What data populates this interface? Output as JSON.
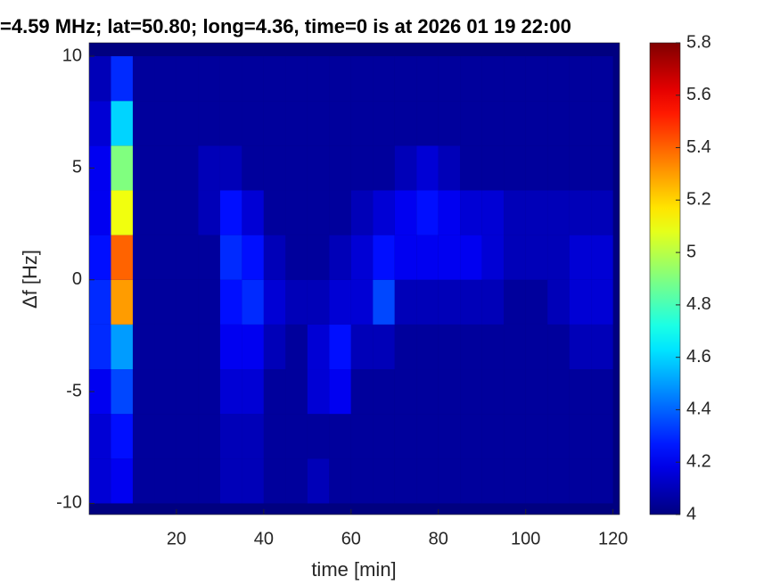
{
  "chart_data": {
    "type": "heatmap",
    "title": "=4.59 MHz;  lat=50.80; long=4.36, time=0 is at 2026 01 19 22:00",
    "xlabel": "time [min]",
    "ylabel": "Δf [Hz]",
    "xlim": [
      0,
      121.5
    ],
    "xticks": [
      20,
      40,
      60,
      80,
      100,
      120
    ],
    "ylim": [
      -10.5,
      10.6
    ],
    "yticks": [
      -10,
      -5,
      0,
      5,
      10
    ],
    "colormap": "jet",
    "clim": [
      4,
      5.8
    ],
    "cticks": [
      4,
      4.2,
      4.4,
      4.6,
      4.8,
      5,
      5.2,
      5.4,
      5.6,
      5.8
    ],
    "xbins": [
      0,
      5,
      10,
      15,
      20,
      25,
      30,
      35,
      40,
      45,
      50,
      55,
      60,
      65,
      70,
      75,
      80,
      85,
      90,
      95,
      100,
      105,
      110,
      115,
      120
    ],
    "ybins": [
      -10,
      -8,
      -6,
      -4,
      -2,
      0,
      2,
      4,
      6,
      8,
      10
    ],
    "z": [
      [
        4.15,
        4.2,
        4.05,
        4.05,
        4.05,
        4.05,
        4.1,
        4.1,
        4.05,
        4.05,
        4.1,
        4.05,
        4.05,
        4.05,
        4.05,
        4.05,
        4.05,
        4.05,
        4.05,
        4.05,
        4.05,
        4.05,
        4.05,
        4.05
      ],
      [
        4.15,
        4.25,
        4.05,
        4.05,
        4.05,
        4.05,
        4.1,
        4.1,
        4.05,
        4.05,
        4.05,
        4.05,
        4.05,
        4.05,
        4.05,
        4.05,
        4.05,
        4.05,
        4.05,
        4.05,
        4.05,
        4.05,
        4.05,
        4.05
      ],
      [
        4.2,
        4.35,
        4.05,
        4.05,
        4.05,
        4.05,
        4.15,
        4.15,
        4.05,
        4.05,
        4.15,
        4.2,
        4.05,
        4.05,
        4.05,
        4.05,
        4.05,
        4.05,
        4.05,
        4.05,
        4.05,
        4.05,
        4.05,
        4.05
      ],
      [
        4.3,
        4.5,
        4.05,
        4.05,
        4.05,
        4.05,
        4.2,
        4.2,
        4.1,
        4.05,
        4.15,
        4.25,
        4.1,
        4.1,
        4.05,
        4.05,
        4.05,
        4.05,
        4.05,
        4.05,
        4.05,
        4.05,
        4.1,
        4.1
      ],
      [
        4.3,
        5.3,
        4.05,
        4.05,
        4.05,
        4.05,
        4.25,
        4.3,
        4.15,
        4.1,
        4.1,
        4.15,
        4.15,
        4.35,
        4.1,
        4.1,
        4.1,
        4.1,
        4.1,
        4.05,
        4.05,
        4.1,
        4.15,
        4.15
      ],
      [
        4.25,
        5.4,
        4.05,
        4.05,
        4.05,
        4.05,
        4.3,
        4.25,
        4.1,
        4.05,
        4.05,
        4.1,
        4.15,
        4.25,
        4.2,
        4.2,
        4.2,
        4.2,
        4.15,
        4.1,
        4.1,
        4.1,
        4.15,
        4.15
      ],
      [
        4.2,
        5.1,
        4.05,
        4.05,
        4.05,
        4.1,
        4.25,
        4.15,
        4.05,
        4.05,
        4.05,
        4.05,
        4.1,
        4.15,
        4.2,
        4.25,
        4.2,
        4.15,
        4.15,
        4.1,
        4.1,
        4.1,
        4.1,
        4.1
      ],
      [
        4.2,
        4.9,
        4.05,
        4.05,
        4.05,
        4.1,
        4.1,
        4.05,
        4.05,
        4.05,
        4.05,
        4.05,
        4.05,
        4.05,
        4.1,
        4.15,
        4.1,
        4.05,
        4.05,
        4.05,
        4.05,
        4.05,
        4.05,
        4.05
      ],
      [
        4.15,
        4.6,
        4.05,
        4.05,
        4.05,
        4.05,
        4.05,
        4.05,
        4.05,
        4.05,
        4.05,
        4.05,
        4.05,
        4.05,
        4.05,
        4.05,
        4.05,
        4.05,
        4.05,
        4.05,
        4.05,
        4.05,
        4.05,
        4.05
      ],
      [
        4.1,
        4.3,
        4.05,
        4.05,
        4.05,
        4.05,
        4.05,
        4.05,
        4.05,
        4.05,
        4.05,
        4.05,
        4.05,
        4.05,
        4.05,
        4.05,
        4.05,
        4.05,
        4.05,
        4.05,
        4.05,
        4.05,
        4.05,
        4.05
      ]
    ]
  }
}
